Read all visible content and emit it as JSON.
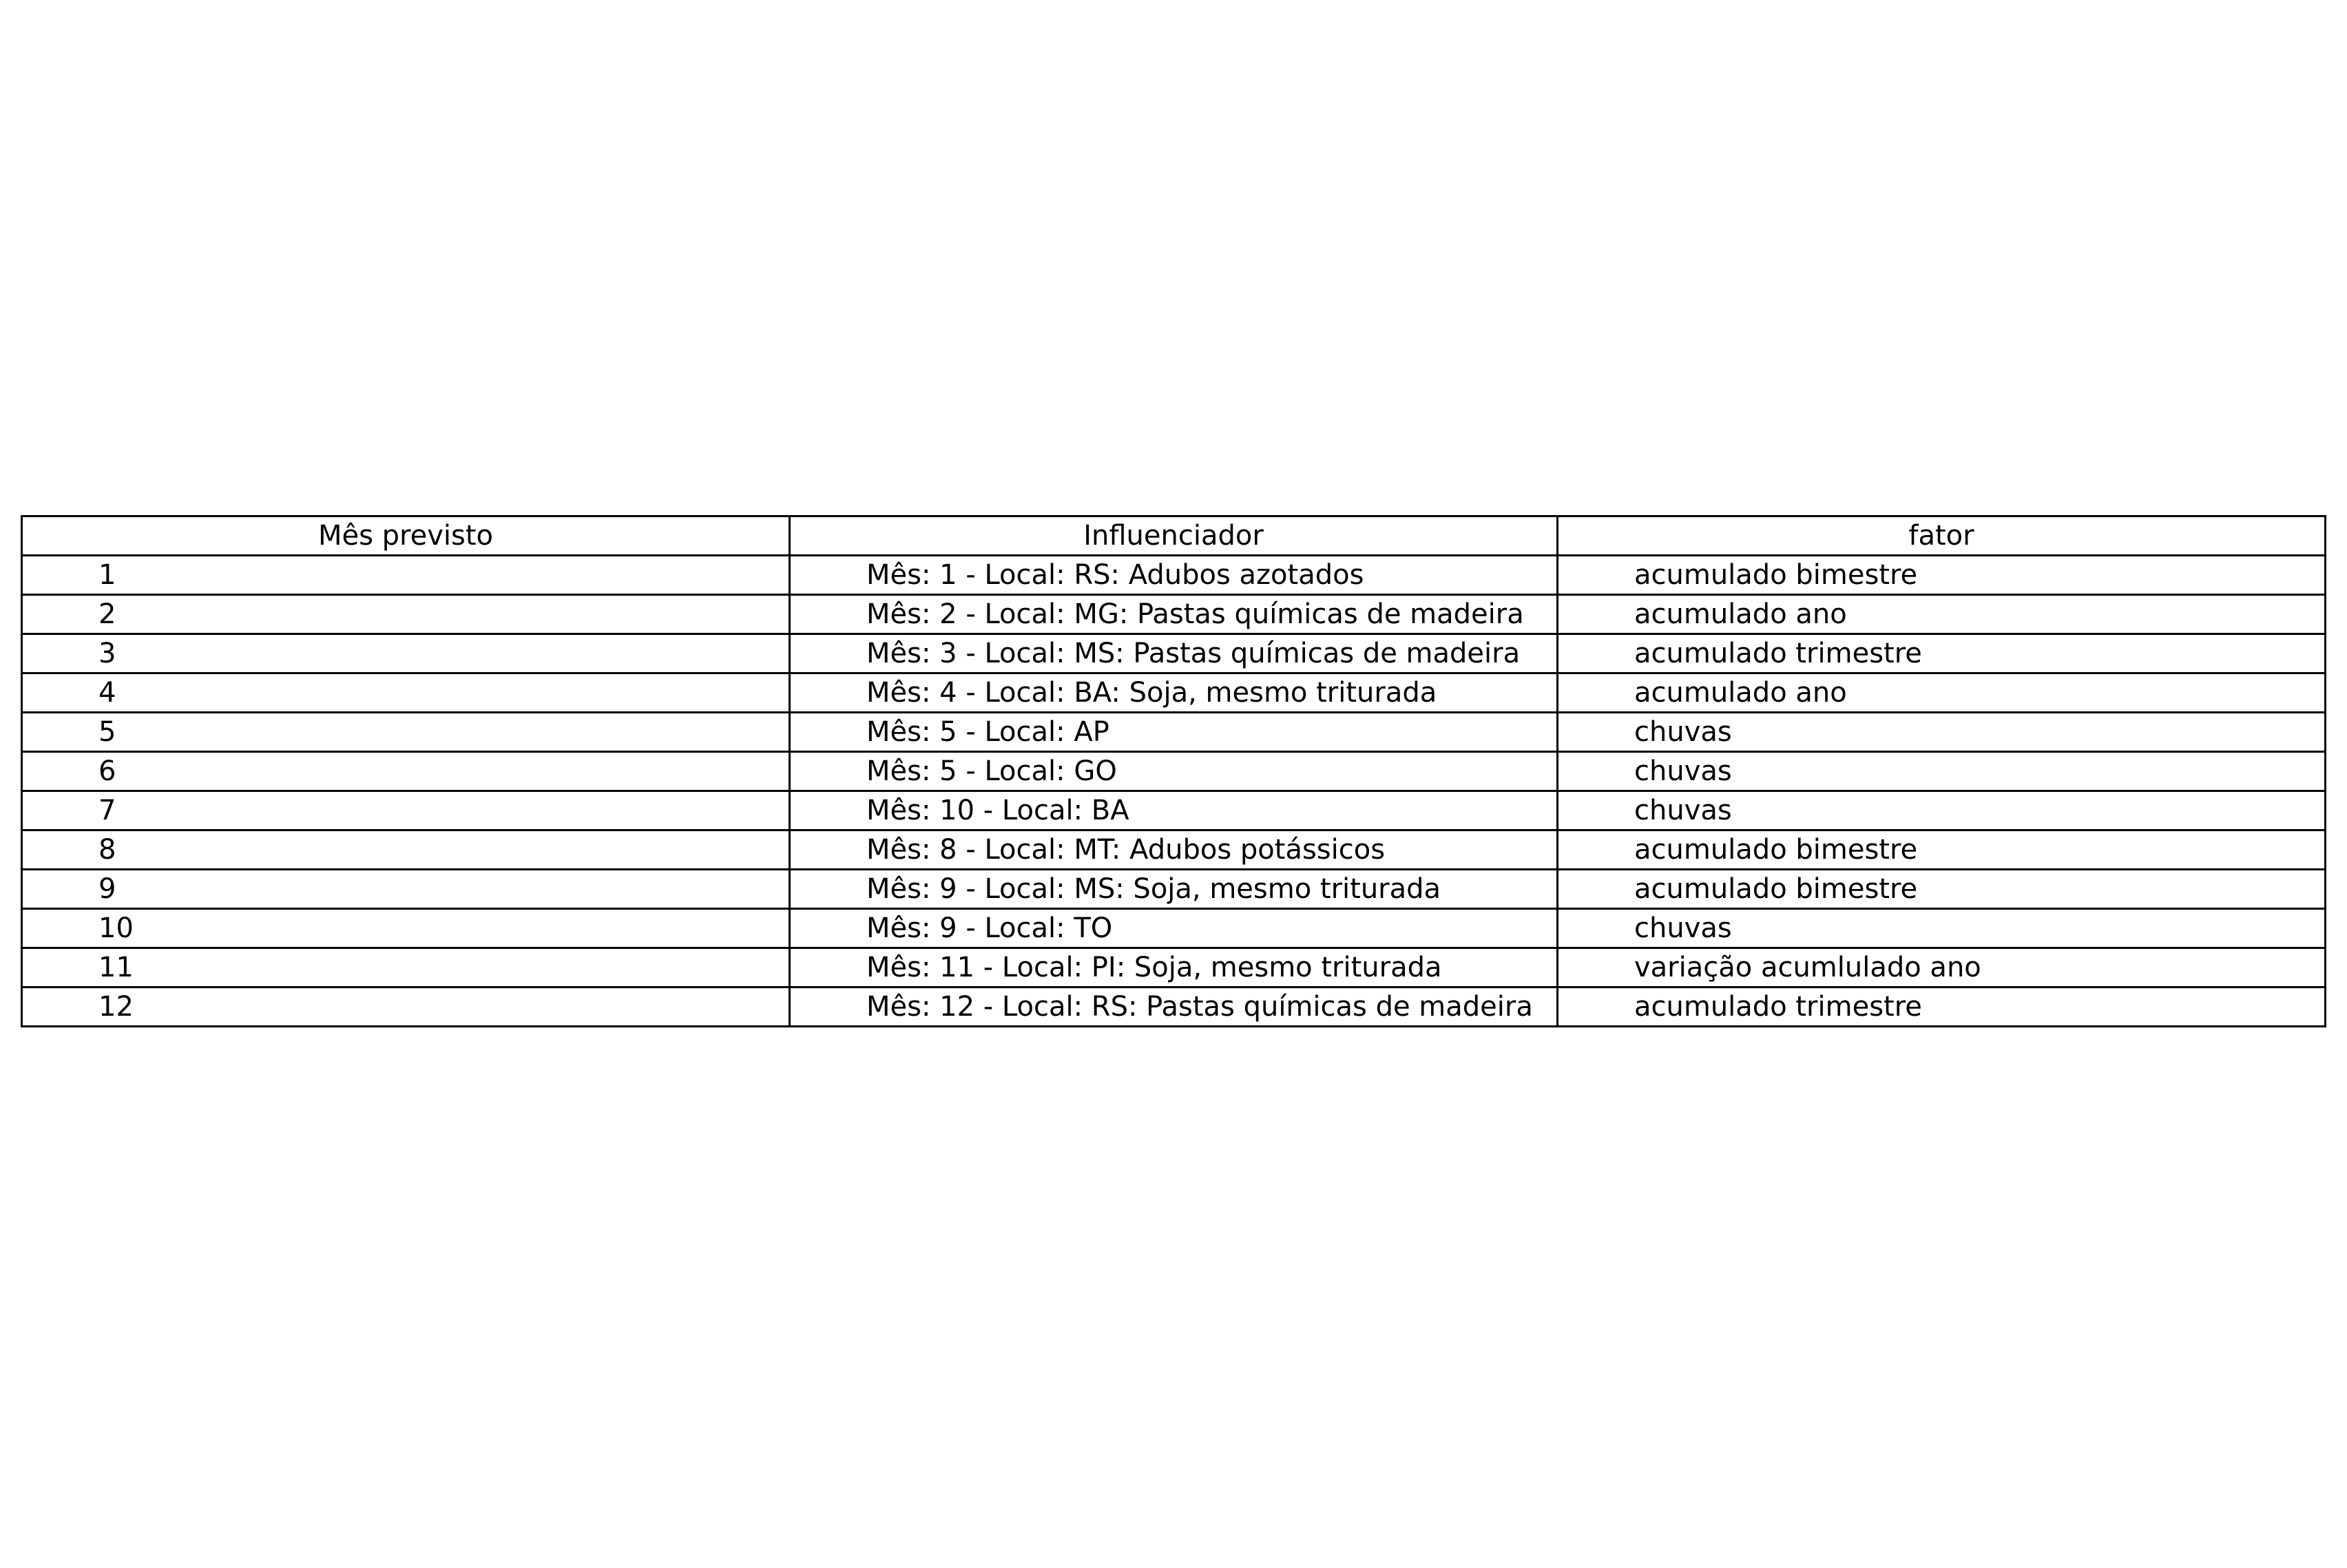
{
  "table": {
    "headers": [
      "Mês previsto",
      "Influenciador",
      "fator"
    ],
    "rows": [
      [
        "1",
        "Mês: 1 - Local: RS: Adubos  azotados",
        "acumulado bimestre"
      ],
      [
        "2",
        "Mês: 2 - Local: MG: Pastas químicas de madeira",
        "acumulado ano"
      ],
      [
        "3",
        "Mês: 3 - Local: MS: Pastas químicas de madeira",
        "acumulado trimestre"
      ],
      [
        "4",
        "Mês: 4 - Local: BA: Soja, mesmo triturada",
        "acumulado ano"
      ],
      [
        "5",
        "Mês: 5 - Local: AP",
        "chuvas"
      ],
      [
        "6",
        "Mês: 5 - Local: GO",
        "chuvas"
      ],
      [
        "7",
        "Mês: 10 - Local: BA",
        "chuvas"
      ],
      [
        "8",
        "Mês: 8 - Local: MT: Adubos  potássicos",
        "acumulado bimestre"
      ],
      [
        "9",
        "Mês: 9 - Local: MS: Soja, mesmo triturada",
        "acumulado bimestre"
      ],
      [
        "10",
        "Mês: 9 - Local: TO",
        "chuvas"
      ],
      [
        "11",
        "Mês: 11 - Local: PI: Soja, mesmo triturada",
        "variação acumlulado ano"
      ],
      [
        "12",
        "Mês: 12 - Local: RS: Pastas químicas de madeira",
        "acumulado trimestre"
      ]
    ]
  }
}
